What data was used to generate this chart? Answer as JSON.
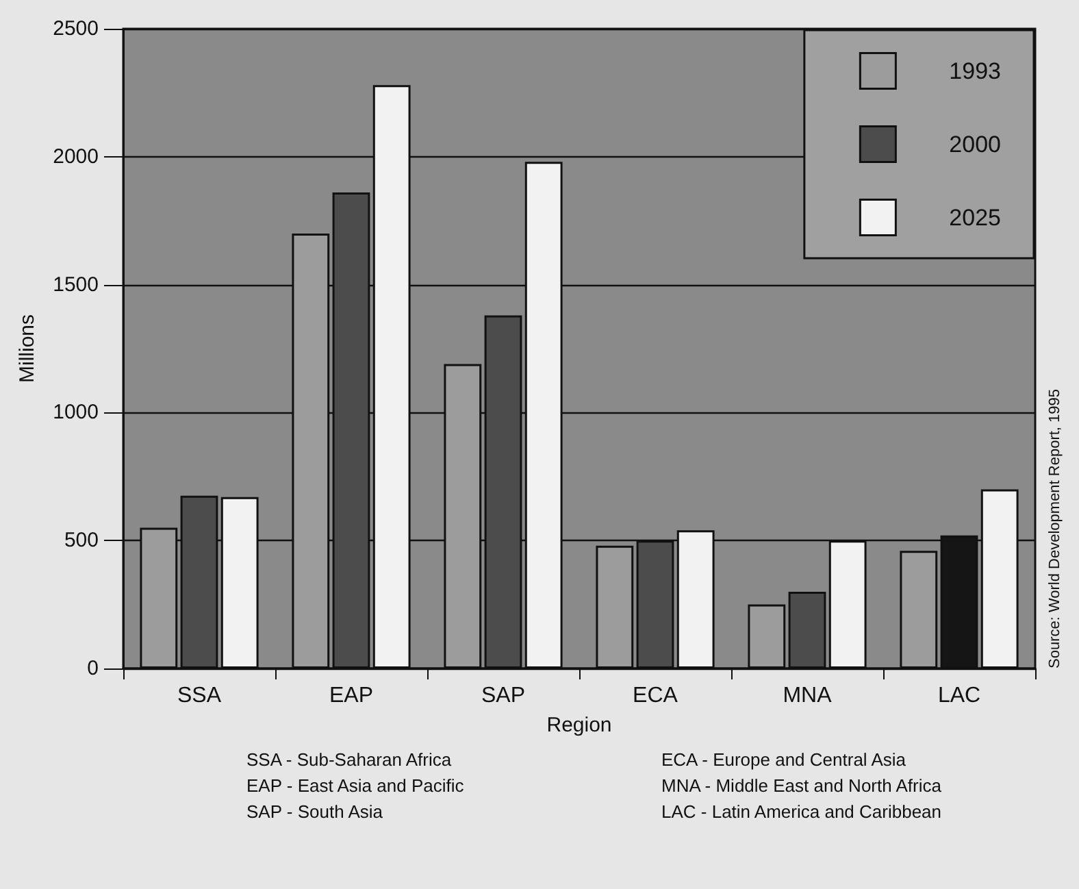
{
  "chart_data": {
    "type": "bar",
    "xlabel": "Region",
    "ylabel": "Millions",
    "categories": [
      "SSA",
      "EAP",
      "SAP",
      "ECA",
      "MNA",
      "LAC"
    ],
    "series": [
      {
        "name": "1993",
        "color": "#9c9c9c",
        "values": [
          550,
          1700,
          1190,
          480,
          250,
          460
        ]
      },
      {
        "name": "2000",
        "color": "#4c4c4c",
        "colors": [
          "#4c4c4c",
          "#4c4c4c",
          "#4c4c4c",
          "#4c4c4c",
          "#4c4c4c",
          "#151515"
        ],
        "values": [
          675,
          1860,
          1380,
          500,
          300,
          520
        ]
      },
      {
        "name": "2025",
        "color": "#f2f2f2",
        "values": [
          670,
          2280,
          1980,
          540,
          500,
          700
        ]
      }
    ],
    "ylim": [
      0,
      2500
    ],
    "yticks": [
      0,
      500,
      1000,
      1500,
      2000,
      2500
    ],
    "grid": "y",
    "legend": "top right",
    "annotations": [
      "Source: World Development Report, 1995",
      "SSA - Sub-Saharan Africa",
      "EAP - East Asia and Pacific",
      "SAP - South Asia",
      "ECA - Europe and Central Asia",
      "MNA - Middle East and North Africa",
      "LAC - Latin America and Caribbean"
    ]
  }
}
